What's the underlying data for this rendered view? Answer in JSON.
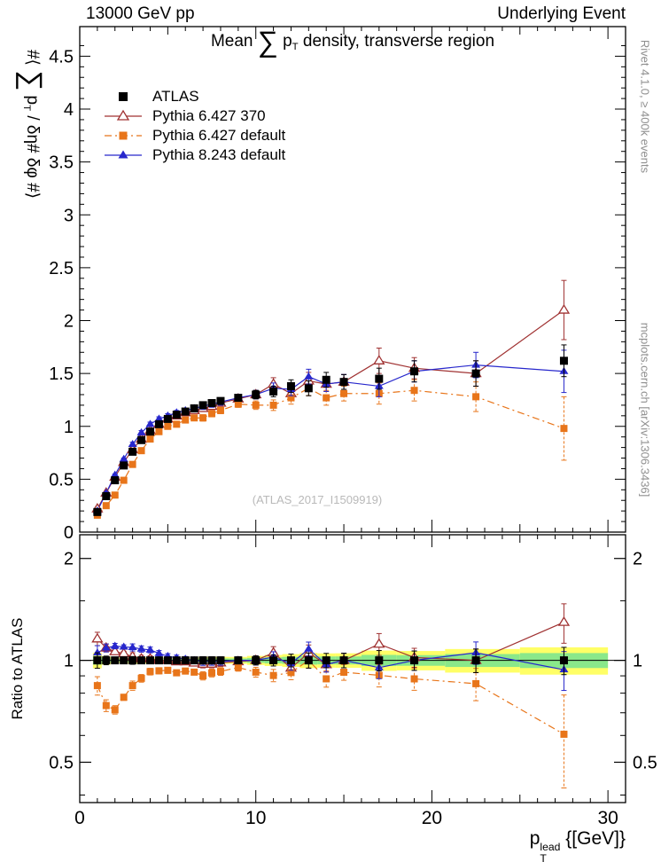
{
  "header": {
    "left": "13000 GeV pp",
    "right": "Underlying Event"
  },
  "titles": {
    "plot": [
      {
        "t": "Mean "
      },
      {
        "t": "∑",
        "style": "sum"
      },
      {
        "t": " p"
      },
      {
        "t": "T",
        "style": "sub"
      },
      {
        "t": " density, transverse region"
      }
    ],
    "y_axis": [
      {
        "t": "#⟨ "
      },
      {
        "t": "∑",
        "style": "sum"
      },
      {
        "t": " p"
      },
      {
        "t": "T",
        "style": "sub"
      },
      {
        "t": " / δη# δφ #⟩"
      }
    ],
    "ratio_axis": "Ratio to ATLAS",
    "x_axis": [
      {
        "t": "p"
      },
      {
        "style": "stack",
        "top": "lead",
        "bot": "T"
      },
      {
        "t": " {[GeV]}"
      }
    ]
  },
  "watermark": "(ATLAS_2017_I1509919)",
  "side_labels": {
    "top_right": "Rivet 4.1.0, ≥ 400k events",
    "bottom_right": "mcplots.cern.ch [arXiv:1306.3436]"
  },
  "chart_data": {
    "type": "scatter",
    "title": "Mean sum pT density, transverse region",
    "xlabel": "pT lead [GeV]",
    "ylabel": "< sum pT / deta dphi >",
    "ratio_label": "Ratio to ATLAS",
    "x_range": [
      0,
      31
    ],
    "main_y_range": [
      0,
      4.78
    ],
    "ratio_y_range": [
      0.38,
      2.35
    ],
    "ratio_scale": "log",
    "grid": false,
    "legend_position": "top-left",
    "x_tick_labels": [
      0,
      10,
      20,
      30
    ],
    "main_y_tick_labels": [
      0,
      0.5,
      1,
      1.5,
      2,
      2.5,
      3,
      3.5,
      4,
      4.5
    ],
    "ratio_y_tick_labels": [
      0.5,
      1,
      2
    ],
    "ratio_y_minor_ticks": [
      0.4,
      0.6,
      0.7,
      0.8,
      0.9,
      1.5
    ],
    "reference": "ATLAS",
    "band_colors": {
      "outer": "#ffff66",
      "inner": "#8ae88a"
    },
    "x": [
      1,
      1.5,
      2,
      2.5,
      3,
      3.5,
      4,
      4.5,
      5,
      5.5,
      6,
      6.5,
      7,
      7.5,
      8,
      9,
      10,
      11,
      12,
      13,
      14,
      15,
      17,
      19,
      22.5,
      27.5
    ],
    "series": [
      {
        "id": "atlas",
        "name": "ATLAS",
        "color": "#000000",
        "marker": "square-filled",
        "marker_size": 4.5,
        "line": null,
        "values": [
          0.19,
          0.34,
          0.49,
          0.63,
          0.76,
          0.87,
          0.95,
          1.02,
          1.07,
          1.11,
          1.14,
          1.17,
          1.2,
          1.22,
          1.24,
          1.27,
          1.3,
          1.33,
          1.38,
          1.36,
          1.44,
          1.42,
          1.45,
          1.52,
          1.5,
          1.62
        ],
        "errors": [
          0.01,
          0.01,
          0.01,
          0.01,
          0.02,
          0.02,
          0.02,
          0.02,
          0.02,
          0.02,
          0.02,
          0.02,
          0.03,
          0.03,
          0.03,
          0.03,
          0.04,
          0.05,
          0.06,
          0.07,
          0.07,
          0.07,
          0.1,
          0.1,
          0.12,
          0.15
        ]
      },
      {
        "id": "pythia6-370",
        "name": "Pythia 6.427 370",
        "color": "#a03232",
        "marker": "triangle-open",
        "marker_size": 4,
        "line": "solid",
        "values": [
          0.22,
          0.37,
          0.52,
          0.66,
          0.78,
          0.88,
          0.96,
          1.02,
          1.07,
          1.1,
          1.13,
          1.15,
          1.17,
          1.19,
          1.22,
          1.26,
          1.3,
          1.4,
          1.31,
          1.43,
          1.4,
          1.42,
          1.62,
          1.55,
          1.5,
          2.1
        ],
        "errors": [
          0.01,
          0.01,
          0.01,
          0.01,
          0.02,
          0.02,
          0.02,
          0.02,
          0.02,
          0.02,
          0.02,
          0.02,
          0.03,
          0.03,
          0.03,
          0.03,
          0.04,
          0.06,
          0.06,
          0.08,
          0.07,
          0.07,
          0.12,
          0.1,
          0.12,
          0.28
        ]
      },
      {
        "id": "pythia6-default",
        "name": "Pythia 6.427 default",
        "color": "#e8751a",
        "marker": "square-filled",
        "marker_size": 4,
        "line": "dashdot",
        "values": [
          0.16,
          0.25,
          0.35,
          0.49,
          0.64,
          0.77,
          0.88,
          0.95,
          1.0,
          1.02,
          1.06,
          1.08,
          1.08,
          1.12,
          1.15,
          1.21,
          1.2,
          1.2,
          1.27,
          1.36,
          1.27,
          1.31,
          1.31,
          1.34,
          1.28,
          0.98
        ],
        "errors": [
          0.01,
          0.01,
          0.01,
          0.01,
          0.02,
          0.02,
          0.02,
          0.02,
          0.02,
          0.02,
          0.02,
          0.02,
          0.03,
          0.03,
          0.03,
          0.03,
          0.04,
          0.05,
          0.06,
          0.07,
          0.07,
          0.07,
          0.1,
          0.1,
          0.14,
          0.3
        ]
      },
      {
        "id": "pythia8-default",
        "name": "Pythia 8.243 default",
        "color": "#2727cc",
        "marker": "triangle-filled",
        "marker_size": 4,
        "line": "solid",
        "values": [
          0.2,
          0.37,
          0.54,
          0.69,
          0.83,
          0.94,
          1.02,
          1.07,
          1.1,
          1.13,
          1.15,
          1.17,
          1.19,
          1.21,
          1.23,
          1.27,
          1.3,
          1.36,
          1.35,
          1.47,
          1.4,
          1.42,
          1.38,
          1.52,
          1.58,
          1.52
        ],
        "errors": [
          0.01,
          0.01,
          0.01,
          0.01,
          0.02,
          0.02,
          0.02,
          0.02,
          0.02,
          0.02,
          0.02,
          0.02,
          0.03,
          0.03,
          0.03,
          0.03,
          0.04,
          0.05,
          0.06,
          0.07,
          0.07,
          0.07,
          0.1,
          0.1,
          0.12,
          0.2
        ]
      }
    ]
  }
}
